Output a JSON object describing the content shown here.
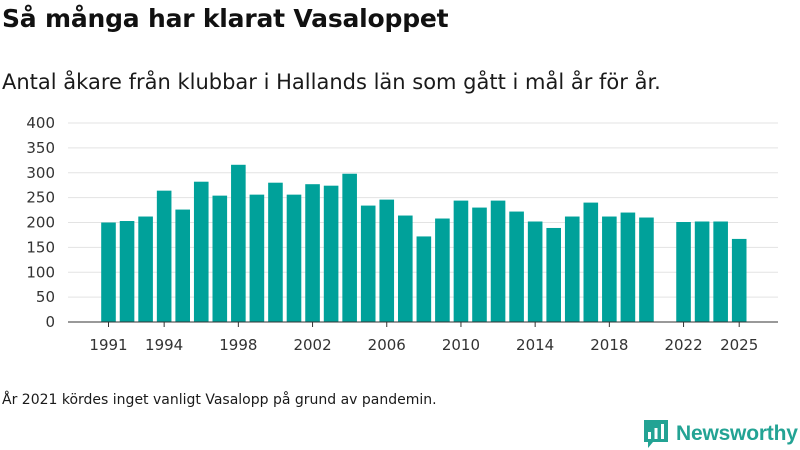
{
  "header": {
    "title": "Så många har klarat Vasaloppet",
    "subtitle": "Antal åkare från klubbar i Hallands län som gått i mål år för år."
  },
  "footnote": "År 2021 kördes inget vanligt Vasalopp på grund av pandemin.",
  "branding": {
    "name": "Newsworthy",
    "icon": "newsworthy-logo-icon",
    "color": "#23a394"
  },
  "colors": {
    "bar": "#00a19a",
    "grid": "#e3e3e3",
    "axis": "#333333"
  },
  "chart_data": {
    "type": "bar",
    "title": "Så många har klarat Vasaloppet",
    "subtitle": "Antal åkare från klubbar i Hallands län som gått i mål år för år.",
    "xlabel": "",
    "ylabel": "",
    "ylim": [
      0,
      400
    ],
    "yticks": [
      0,
      50,
      100,
      150,
      200,
      250,
      300,
      350,
      400
    ],
    "xticks": [
      1991,
      1994,
      1998,
      2002,
      2006,
      2010,
      2014,
      2018,
      2022,
      2025
    ],
    "grid": true,
    "legend": "none",
    "categories": [
      1991,
      1992,
      1993,
      1994,
      1995,
      1996,
      1997,
      1998,
      1999,
      2000,
      2001,
      2002,
      2003,
      2004,
      2005,
      2006,
      2007,
      2008,
      2009,
      2010,
      2011,
      2012,
      2013,
      2014,
      2015,
      2016,
      2017,
      2018,
      2019,
      2020,
      2021,
      2022,
      2023,
      2024,
      2025
    ],
    "values": [
      200,
      203,
      212,
      264,
      226,
      282,
      254,
      316,
      256,
      280,
      256,
      277,
      274,
      298,
      234,
      246,
      214,
      172,
      208,
      244,
      230,
      244,
      222,
      202,
      189,
      212,
      240,
      212,
      220,
      210,
      null,
      201,
      202,
      202,
      167
    ]
  }
}
